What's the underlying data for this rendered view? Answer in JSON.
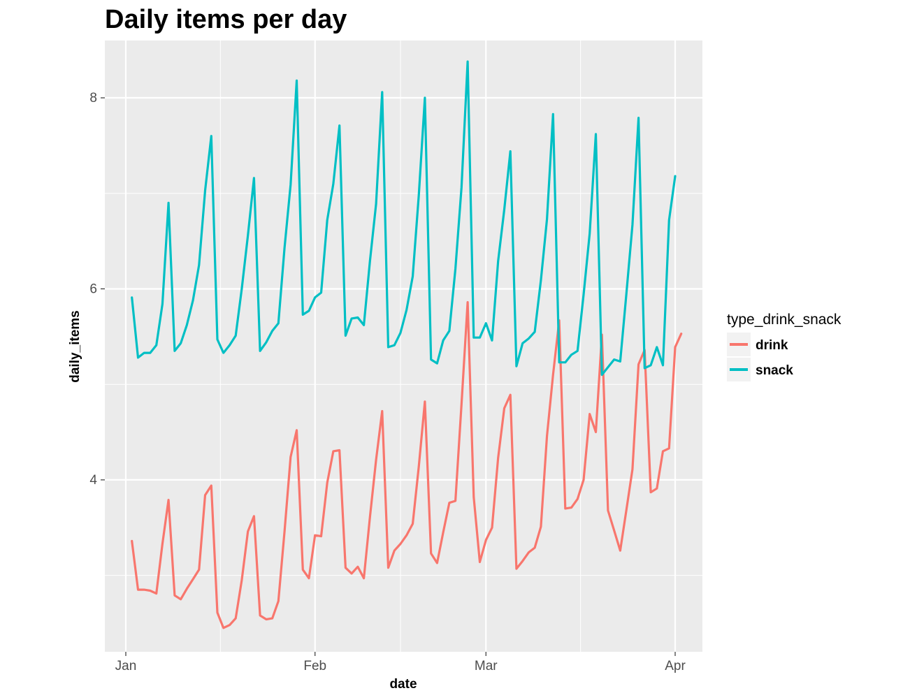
{
  "chart_data": {
    "type": "line",
    "title": "Daily items per day",
    "xlabel": "date",
    "ylabel": "daily_items",
    "x_ticks": [
      "Jan",
      "Feb",
      "Mar",
      "Apr"
    ],
    "y_ticks": [
      "4",
      "6",
      "8"
    ],
    "x_range": [
      "2017-01-01",
      "2017-04-01"
    ],
    "ylim": [
      2.2,
      8.6
    ],
    "grid": true,
    "background": "#ebebeb",
    "legend": {
      "title": "type_drink_snack",
      "position": "right",
      "entries": [
        {
          "label": "drink",
          "color": "#f8766d"
        },
        {
          "label": "snack",
          "color": "#00bfc4"
        }
      ]
    },
    "x_start": "2017-01-02",
    "x_step_days": 1,
    "series": [
      {
        "name": "drink",
        "color": "#f8766d",
        "values": [
          3.36,
          2.85,
          2.85,
          2.84,
          2.81,
          3.33,
          3.79,
          2.79,
          2.75,
          2.86,
          2.96,
          3.06,
          3.84,
          3.94,
          2.61,
          2.45,
          2.48,
          2.55,
          2.95,
          3.46,
          3.62,
          2.58,
          2.54,
          2.55,
          2.73,
          3.46,
          4.24,
          4.52,
          3.06,
          2.97,
          3.42,
          3.41,
          3.97,
          4.3,
          4.31,
          3.08,
          3.02,
          3.09,
          2.97,
          3.61,
          4.21,
          4.72,
          3.08,
          3.26,
          3.33,
          3.42,
          3.54,
          4.14,
          4.82,
          3.23,
          3.13,
          3.45,
          3.76,
          3.78,
          4.79,
          5.86,
          3.82,
          3.14,
          3.37,
          3.5,
          4.23,
          4.75,
          4.89,
          3.07,
          3.15,
          3.24,
          3.29,
          3.51,
          4.46,
          5.1,
          5.67,
          3.7,
          3.71,
          3.8,
          4.0,
          4.69,
          4.5,
          5.52,
          3.68,
          3.47,
          3.26,
          3.68,
          4.11,
          5.21,
          5.36,
          3.87,
          3.91,
          4.3,
          4.33,
          5.39,
          5.53
        ]
      },
      {
        "name": "snack",
        "color": "#00bfc4",
        "values": [
          5.91,
          5.28,
          5.33,
          5.33,
          5.41,
          5.84,
          6.9,
          5.35,
          5.43,
          5.62,
          5.88,
          6.25,
          7.03,
          7.6,
          5.47,
          5.33,
          5.41,
          5.51,
          6.0,
          6.56,
          7.16,
          5.35,
          5.44,
          5.56,
          5.64,
          6.43,
          7.09,
          8.18,
          5.73,
          5.77,
          5.91,
          5.96,
          6.72,
          7.1,
          7.71,
          5.51,
          5.69,
          5.7,
          5.62,
          6.29,
          6.89,
          8.06,
          5.39,
          5.41,
          5.54,
          5.78,
          6.13,
          6.98,
          8.0,
          5.26,
          5.22,
          5.46,
          5.56,
          6.21,
          7.06,
          8.38,
          5.49,
          5.49,
          5.64,
          5.46,
          6.29,
          6.83,
          7.44,
          5.19,
          5.43,
          5.48,
          5.55,
          6.09,
          6.73,
          7.83,
          5.23,
          5.23,
          5.31,
          5.35,
          5.94,
          6.58,
          7.62,
          5.1,
          5.18,
          5.26,
          5.24,
          5.94,
          6.67,
          7.79,
          5.17,
          5.2,
          5.39,
          5.2,
          6.72,
          7.18
        ]
      }
    ]
  }
}
